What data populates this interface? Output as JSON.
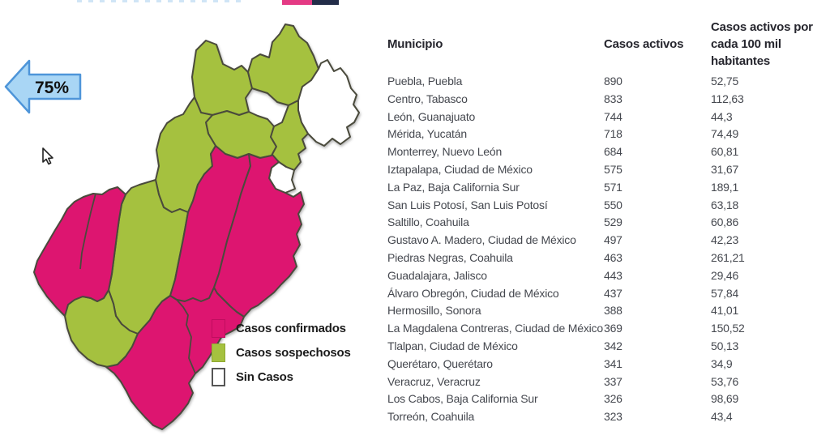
{
  "colors": {
    "confirmed_pink": "#dd1570",
    "suspected_green": "#a5c13f",
    "no_cases_white": "#ffffff",
    "map_border": "#4a4a3c",
    "arrow_fill": "#a9d6f5",
    "arrow_border": "#4e95d9",
    "topbar_pink": "#e43a84",
    "topbar_navy": "#232d49"
  },
  "arrow": {
    "label": "75%"
  },
  "legend": {
    "items": [
      {
        "key": "confirmed",
        "label": "Casos confirmados"
      },
      {
        "key": "suspected",
        "label": "Casos sospechosos"
      },
      {
        "key": "none",
        "label": "Sin Casos"
      }
    ]
  },
  "map": {
    "region_colors_meaning": {
      "pink": "Casos confirmados",
      "green": "Casos sospechosos",
      "white": "Sin Casos"
    }
  },
  "table": {
    "col_municipio": "Municipio",
    "col_casos": "Casos activos",
    "col_tasa": "Casos activos por cada 100 mil habitantes",
    "rows": [
      {
        "municipio": "Puebla, Puebla",
        "casos": "890",
        "tasa": "52,75"
      },
      {
        "municipio": "Centro, Tabasco",
        "casos": "833",
        "tasa": "112,63"
      },
      {
        "municipio": "León, Guanajuato",
        "casos": "744",
        "tasa": "44,3"
      },
      {
        "municipio": "Mérida, Yucatán",
        "casos": "718",
        "tasa": "74,49"
      },
      {
        "municipio": "Monterrey, Nuevo León",
        "casos": "684",
        "tasa": "60,81"
      },
      {
        "municipio": "Iztapalapa, Ciudad de México",
        "casos": "575",
        "tasa": "31,67"
      },
      {
        "municipio": "La Paz, Baja California Sur",
        "casos": "571",
        "tasa": "189,1"
      },
      {
        "municipio": "San Luis Potosí, San Luis Potosí",
        "casos": "550",
        "tasa": "63,18"
      },
      {
        "municipio": "Saltillo, Coahuila",
        "casos": "529",
        "tasa": "60,86"
      },
      {
        "municipio": "Gustavo A. Madero, Ciudad de México",
        "casos": "497",
        "tasa": "42,23"
      },
      {
        "municipio": "Piedras Negras, Coahuila",
        "casos": "463",
        "tasa": "261,21"
      },
      {
        "municipio": "Guadalajara, Jalisco",
        "casos": "443",
        "tasa": "29,46"
      },
      {
        "municipio": "Álvaro Obregón, Ciudad de México",
        "casos": "437",
        "tasa": "57,84"
      },
      {
        "municipio": "Hermosillo, Sonora",
        "casos": "388",
        "tasa": "41,01"
      },
      {
        "municipio": "La Magdalena Contreras, Ciudad de México",
        "casos": "369",
        "tasa": "150,52"
      },
      {
        "municipio": "Tlalpan, Ciudad de México",
        "casos": "342",
        "tasa": "50,13"
      },
      {
        "municipio": "Querétaro, Querétaro",
        "casos": "341",
        "tasa": "34,9"
      },
      {
        "municipio": "Veracruz, Veracruz",
        "casos": "337",
        "tasa": "53,76"
      },
      {
        "municipio": "Los Cabos, Baja California Sur",
        "casos": "326",
        "tasa": "98,69"
      },
      {
        "municipio": "Torreón, Coahuila",
        "casos": "323",
        "tasa": "43,4"
      }
    ]
  }
}
